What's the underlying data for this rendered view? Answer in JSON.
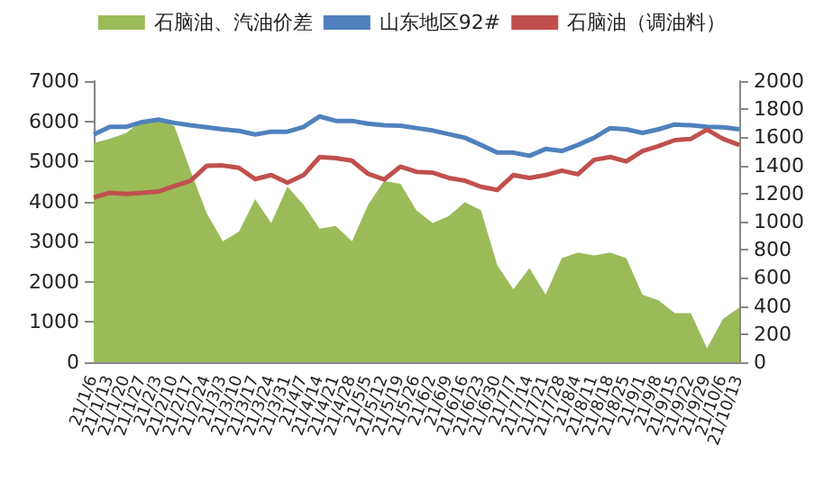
{
  "chart_data": {
    "type": "line",
    "categories": [
      "21/1/6",
      "21/1/13",
      "21/1/20",
      "21/1/27",
      "21/2/3",
      "21/2/10",
      "21/2/17",
      "21/2/24",
      "21/3/3",
      "21/3/10",
      "21/3/17",
      "21/3/24",
      "21/3/31",
      "21/4/7",
      "21/4/14",
      "21/4/21",
      "21/4/28",
      "21/5/5",
      "21/5/12",
      "21/5/19",
      "21/5/26",
      "21/6/2",
      "21/6/9",
      "21/6/16",
      "21/6/23",
      "21/6/30",
      "21/7/7",
      "21/7/14",
      "21/7/21",
      "21/7/28",
      "21/8/4",
      "21/8/11",
      "21/8/18",
      "21/8/25",
      "21/9/1",
      "21/9/8",
      "21/9/15",
      "21/9/22",
      "21/9/29",
      "21/10/6",
      "21/10/13"
    ],
    "series": [
      {
        "name": "石脑油、汽油价差",
        "type": "area",
        "axis": "y2",
        "color": "#9bbb59",
        "values": [
          1560,
          1590,
          1630,
          1720,
          1740,
          1680,
          1360,
          1060,
          860,
          930,
          1160,
          990,
          1250,
          1120,
          950,
          970,
          860,
          1120,
          1290,
          1270,
          1080,
          990,
          1040,
          1140,
          1080,
          690,
          520,
          670,
          480,
          740,
          780,
          760,
          780,
          740,
          480,
          440,
          350,
          350,
          100,
          310,
          390
        ]
      },
      {
        "name": "山东地区92#",
        "color": "#4f81bd",
        "values": [
          5670,
          5860,
          5860,
          5980,
          6040,
          5960,
          5900,
          5850,
          5800,
          5760,
          5670,
          5740,
          5740,
          5860,
          6120,
          6010,
          6010,
          5940,
          5900,
          5890,
          5830,
          5770,
          5680,
          5590,
          5410,
          5220,
          5220,
          5140,
          5310,
          5260,
          5410,
          5590,
          5830,
          5800,
          5710,
          5800,
          5920,
          5900,
          5860,
          5850,
          5800
        ]
      },
      {
        "name": "石脑油（调油料）",
        "color": "#c0504d",
        "values": [
          4100,
          4220,
          4190,
          4220,
          4250,
          4390,
          4520,
          4890,
          4900,
          4840,
          4560,
          4660,
          4470,
          4660,
          5110,
          5080,
          5020,
          4690,
          4550,
          4870,
          4740,
          4720,
          4590,
          4520,
          4370,
          4290,
          4660,
          4590,
          4660,
          4770,
          4680,
          5040,
          5110,
          5000,
          5260,
          5380,
          5530,
          5560,
          5790,
          5560,
          5410
        ]
      }
    ],
    "ylim": [
      0,
      7000
    ],
    "yticks": [
      0,
      1000,
      2000,
      3000,
      4000,
      5000,
      6000,
      7000
    ],
    "y2lim": [
      0,
      2000
    ],
    "y2ticks": [
      0,
      200,
      400,
      600,
      800,
      1000,
      1200,
      1400,
      1600,
      1800,
      2000
    ],
    "legend": "top",
    "grid": false,
    "marker": "none",
    "line_style": "solid"
  }
}
